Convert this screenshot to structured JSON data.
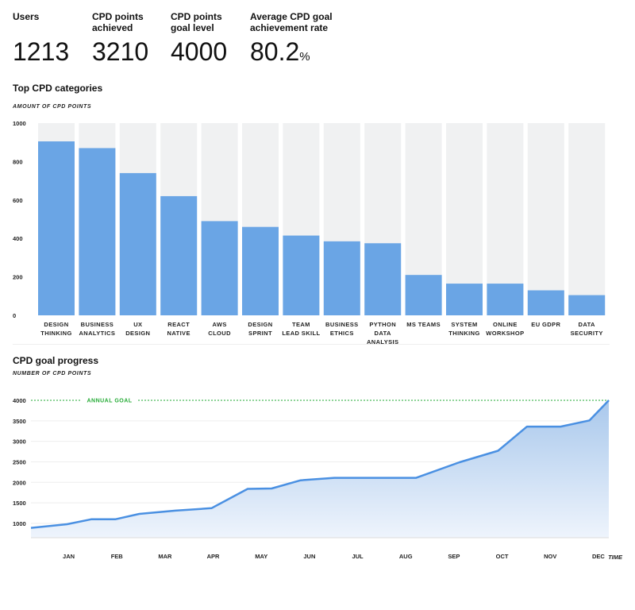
{
  "kpis": [
    {
      "label_lines": [
        "Users"
      ],
      "value": "1213",
      "unit": ""
    },
    {
      "label_lines": [
        "CPD points",
        "achieved"
      ],
      "value": "3210",
      "unit": ""
    },
    {
      "label_lines": [
        "CPD points",
        "goal level"
      ],
      "value": "4000",
      "unit": ""
    },
    {
      "label_lines": [
        "Average CPD goal",
        "achievement rate"
      ],
      "value": "80.2",
      "unit": "%"
    }
  ],
  "colors": {
    "bar": "#6aa5e5",
    "track": "#f0f1f2",
    "line": "#4a90e2",
    "goal": "#22aa33",
    "area_top": "#a9c8ec",
    "area_bottom": "#eef4fc"
  },
  "charts": {
    "categories_chart": {
      "title": "Top CPD categories",
      "axis_title": "AMOUNT OF CPD POINTS"
    },
    "progress_chart": {
      "title": "CPD goal progress",
      "axis_title": "NUMBER OF CPD POINTS",
      "goal_label": "ANNUAL GOAL",
      "x_axis_title": "TIME"
    }
  },
  "chart_data": [
    {
      "type": "bar",
      "title": "Top CPD categories",
      "ylabel": "AMOUNT OF CPD POINTS",
      "ylim": [
        0,
        1000
      ],
      "yticks": [
        0,
        200,
        400,
        600,
        800,
        1000
      ],
      "categories": [
        [
          "DESIGN",
          "THINKING"
        ],
        [
          "BUSINESS",
          "ANALYTICS"
        ],
        [
          "UX",
          "DESIGN"
        ],
        [
          "REACT",
          "NATIVE"
        ],
        [
          "AWS",
          "CLOUD"
        ],
        [
          "DESIGN",
          "SPRINT"
        ],
        [
          "TEAM",
          "LEAD SKILL"
        ],
        [
          "BUSINESS",
          "ETHICS"
        ],
        [
          "PYTHON",
          "DATA",
          "ANALYSIS"
        ],
        [
          "MS TEAMS"
        ],
        [
          "SYSTEM",
          "THINKING"
        ],
        [
          "ONLINE",
          "WORKSHOP"
        ],
        [
          "EU GDPR"
        ],
        [
          "DATA",
          "SECURITY"
        ]
      ],
      "values": [
        905,
        870,
        740,
        620,
        490,
        460,
        415,
        385,
        375,
        210,
        165,
        165,
        130,
        105
      ],
      "grid": false
    },
    {
      "type": "area",
      "title": "CPD goal progress",
      "ylabel": "NUMBER OF CPD POINTS",
      "xlabel": "TIME",
      "ylim": [
        650,
        4000
      ],
      "yticks": [
        1000,
        1500,
        2000,
        2500,
        3000,
        3500,
        4000
      ],
      "xlim": [
        0,
        12
      ],
      "x_tick_labels": [
        "JAN",
        "FEB",
        "MAR",
        "APR",
        "MAY",
        "JUN",
        "JUL",
        "AUG",
        "SEP",
        "OCT",
        "NOV",
        "DEC"
      ],
      "x_tick_positions": [
        1,
        2,
        3,
        4,
        5,
        6,
        7,
        8,
        9,
        10,
        11,
        12
      ],
      "x": [
        0,
        0.75,
        1.25,
        1.75,
        2.25,
        3.0,
        3.75,
        4.5,
        5.0,
        5.6,
        6.3,
        7.0,
        8.0,
        8.9,
        9.7,
        10.3,
        11.0,
        11.6,
        12.4
      ],
      "y": [
        890,
        980,
        1100,
        1100,
        1230,
        1310,
        1370,
        1840,
        1850,
        2050,
        2110,
        2110,
        2110,
        2490,
        2770,
        3360,
        3360,
        3510,
        4000
      ],
      "goal": 4000,
      "grid": true
    }
  ]
}
